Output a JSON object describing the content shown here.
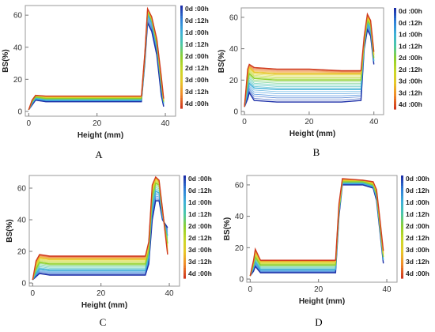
{
  "legend_times": [
    "0d :00h",
    "0d :12h",
    "1d :00h",
    "1d :12h",
    "2d :00h",
    "2d :12h",
    "3d :00h",
    "3d :12h",
    "4d :00h"
  ],
  "legend_colors": [
    "#1c2fa8",
    "#2f7fd8",
    "#3fb0d8",
    "#4cc8a8",
    "#8fd02c",
    "#c8d82a",
    "#e8c82a",
    "#f08a2a",
    "#d03a1e"
  ],
  "chart_data": [
    {
      "panel": "A",
      "type": "line",
      "xlabel": "Height (mm)",
      "ylabel": "BS(%)",
      "xlim": [
        -1,
        43
      ],
      "ylim": [
        -3,
        66
      ],
      "xticks": [
        0,
        20,
        40
      ],
      "yticks": [
        0,
        20,
        40,
        60
      ],
      "series": [
        {
          "name": "0d :00h",
          "points": [
            [
              0,
              1
            ],
            [
              1,
              4
            ],
            [
              2,
              7
            ],
            [
              5,
              6
            ],
            [
              20,
              6
            ],
            [
              33,
              6
            ],
            [
              34,
              30
            ],
            [
              34.8,
              55
            ],
            [
              36,
              50
            ],
            [
              37.5,
              35
            ],
            [
              38.8,
              10
            ],
            [
              39.5,
              3
            ]
          ]
        },
        {
          "name": "1d :00h",
          "points": [
            [
              0,
              1
            ],
            [
              1,
              5
            ],
            [
              2,
              8
            ],
            [
              5,
              7
            ],
            [
              20,
              7
            ],
            [
              33,
              7
            ],
            [
              34,
              32
            ],
            [
              34.8,
              60
            ],
            [
              36,
              55
            ],
            [
              37.5,
              40
            ],
            [
              38.8,
              15
            ],
            [
              39.5,
              5
            ]
          ]
        },
        {
          "name": "2d :00h",
          "points": [
            [
              0,
              1
            ],
            [
              1,
              6
            ],
            [
              2,
              9
            ],
            [
              5,
              8
            ],
            [
              20,
              8
            ],
            [
              33,
              8
            ],
            [
              34,
              34
            ],
            [
              34.8,
              62
            ],
            [
              36,
              57
            ],
            [
              37.5,
              42
            ],
            [
              38.8,
              18
            ],
            [
              39.5,
              6
            ]
          ]
        },
        {
          "name": "3d :00h",
          "points": [
            [
              0,
              1
            ],
            [
              1,
              7
            ],
            [
              2,
              10
            ],
            [
              5,
              9
            ],
            [
              20,
              9
            ],
            [
              33,
              9
            ],
            [
              34,
              35
            ],
            [
              34.8,
              63
            ],
            [
              36,
              58
            ],
            [
              37.5,
              44
            ],
            [
              38.8,
              20
            ],
            [
              39.5,
              7
            ]
          ]
        },
        {
          "name": "4d :00h",
          "points": [
            [
              0,
              1
            ],
            [
              1,
              7
            ],
            [
              2,
              10
            ],
            [
              5,
              9.5
            ],
            [
              20,
              9.5
            ],
            [
              33,
              9.5
            ],
            [
              34,
              36
            ],
            [
              34.8,
              64
            ],
            [
              36,
              59
            ],
            [
              37.5,
              45
            ],
            [
              38.8,
              22
            ],
            [
              39.5,
              8
            ]
          ]
        }
      ]
    },
    {
      "panel": "B",
      "type": "line",
      "xlabel": "Height (mm)",
      "ylabel": "BS(%)",
      "xlim": [
        -1,
        43
      ],
      "ylim": [
        -2,
        66
      ],
      "xticks": [
        0,
        20,
        40
      ],
      "yticks": [
        0,
        20,
        40,
        60
      ],
      "series": [
        {
          "name": "0d :00h",
          "points": [
            [
              0,
              3
            ],
            [
              1,
              8
            ],
            [
              1.5,
              12
            ],
            [
              3,
              7
            ],
            [
              10,
              6
            ],
            [
              20,
              6
            ],
            [
              30,
              6
            ],
            [
              36,
              7
            ],
            [
              37,
              40
            ],
            [
              38,
              52
            ],
            [
              39,
              48
            ],
            [
              40,
              30
            ]
          ]
        },
        {
          "name": "1d :00h",
          "points": [
            [
              0,
              3
            ],
            [
              1,
              14
            ],
            [
              1.5,
              18
            ],
            [
              3,
              15
            ],
            [
              10,
              14
            ],
            [
              20,
              14
            ],
            [
              30,
              14
            ],
            [
              36,
              14
            ],
            [
              37,
              42
            ],
            [
              38,
              56
            ],
            [
              39,
              52
            ],
            [
              40,
              32
            ]
          ]
        },
        {
          "name": "2d :00h",
          "points": [
            [
              0,
              3
            ],
            [
              1,
              20
            ],
            [
              1.5,
              24
            ],
            [
              3,
              21
            ],
            [
              10,
              20
            ],
            [
              20,
              20
            ],
            [
              30,
              20
            ],
            [
              36,
              20
            ],
            [
              37,
              44
            ],
            [
              38,
              58
            ],
            [
              39,
              55
            ],
            [
              40,
              34
            ]
          ]
        },
        {
          "name": "3d :00h",
          "points": [
            [
              0,
              3
            ],
            [
              1,
              24
            ],
            [
              1.5,
              28
            ],
            [
              3,
              25
            ],
            [
              10,
              24
            ],
            [
              20,
              24
            ],
            [
              30,
              24
            ],
            [
              36,
              24
            ],
            [
              37,
              46
            ],
            [
              38,
              60
            ],
            [
              39,
              57
            ],
            [
              40,
              36
            ]
          ]
        },
        {
          "name": "4d :00h",
          "points": [
            [
              0,
              3
            ],
            [
              1,
              27
            ],
            [
              1.5,
              30
            ],
            [
              3,
              28
            ],
            [
              10,
              27
            ],
            [
              20,
              27
            ],
            [
              30,
              26
            ],
            [
              36,
              26
            ],
            [
              37,
              48
            ],
            [
              38,
              62
            ],
            [
              39,
              58
            ],
            [
              40,
              38
            ]
          ]
        }
      ]
    },
    {
      "panel": "C",
      "type": "line",
      "xlabel": "Height (mm)",
      "ylabel": "BS(%)",
      "xlim": [
        -1,
        43
      ],
      "ylim": [
        -2,
        68
      ],
      "xticks": [
        0,
        20,
        40
      ],
      "yticks": [
        0,
        20,
        40,
        60
      ],
      "series": [
        {
          "name": "0d :00h",
          "points": [
            [
              0,
              2
            ],
            [
              1,
              4
            ],
            [
              2,
              6
            ],
            [
              5,
              5
            ],
            [
              20,
              5
            ],
            [
              33,
              5
            ],
            [
              34,
              12
            ],
            [
              35,
              40
            ],
            [
              36,
              52
            ],
            [
              37,
              52
            ],
            [
              38,
              40
            ],
            [
              39.5,
              35
            ]
          ]
        },
        {
          "name": "1d :00h",
          "points": [
            [
              0,
              2
            ],
            [
              1,
              6
            ],
            [
              2,
              9
            ],
            [
              5,
              8
            ],
            [
              20,
              8
            ],
            [
              33,
              8
            ],
            [
              34,
              16
            ],
            [
              35,
              48
            ],
            [
              36,
              58
            ],
            [
              37,
              57
            ],
            [
              38,
              42
            ],
            [
              39.5,
              30
            ]
          ]
        },
        {
          "name": "2d :00h",
          "points": [
            [
              0,
              2
            ],
            [
              1,
              9
            ],
            [
              2,
              13
            ],
            [
              5,
              12
            ],
            [
              20,
              12
            ],
            [
              33,
              12
            ],
            [
              34,
              20
            ],
            [
              35,
              55
            ],
            [
              36,
              63
            ],
            [
              37,
              62
            ],
            [
              38,
              45
            ],
            [
              39.5,
              25
            ]
          ]
        },
        {
          "name": "3d :00h",
          "points": [
            [
              0,
              2
            ],
            [
              1,
              12
            ],
            [
              2,
              16
            ],
            [
              5,
              15
            ],
            [
              20,
              15
            ],
            [
              33,
              15
            ],
            [
              34,
              24
            ],
            [
              35,
              60
            ],
            [
              36,
              66
            ],
            [
              37,
              64
            ],
            [
              38,
              46
            ],
            [
              39.5,
              20
            ]
          ]
        },
        {
          "name": "4d :00h",
          "points": [
            [
              0,
              2
            ],
            [
              1,
              14
            ],
            [
              2,
              18
            ],
            [
              5,
              17
            ],
            [
              20,
              17
            ],
            [
              33,
              17
            ],
            [
              34,
              26
            ],
            [
              35,
              62
            ],
            [
              36,
              67
            ],
            [
              37,
              65
            ],
            [
              38,
              47
            ],
            [
              39.5,
              18
            ]
          ]
        }
      ]
    },
    {
      "panel": "D",
      "type": "line",
      "xlabel": "Height (mm)",
      "ylabel": "BS(%)",
      "xlim": [
        -1,
        43
      ],
      "ylim": [
        -2,
        66
      ],
      "xticks": [
        0,
        20,
        40
      ],
      "yticks": [
        0,
        20,
        40,
        60
      ],
      "series": [
        {
          "name": "0d :00h",
          "points": [
            [
              0,
              2
            ],
            [
              1,
              5
            ],
            [
              1.5,
              8
            ],
            [
              3,
              4
            ],
            [
              10,
              4
            ],
            [
              20,
              4
            ],
            [
              25,
              4
            ],
            [
              26,
              40
            ],
            [
              27,
              60
            ],
            [
              33,
              60
            ],
            [
              36,
              58
            ],
            [
              37,
              50
            ],
            [
              38,
              30
            ],
            [
              39,
              10
            ]
          ]
        },
        {
          "name": "1d :00h",
          "points": [
            [
              0,
              2
            ],
            [
              1,
              7
            ],
            [
              1.5,
              11
            ],
            [
              3,
              6
            ],
            [
              10,
              6
            ],
            [
              20,
              6
            ],
            [
              25,
              6
            ],
            [
              26,
              42
            ],
            [
              27,
              61
            ],
            [
              33,
              61
            ],
            [
              36,
              59
            ],
            [
              37,
              52
            ],
            [
              38,
              32
            ],
            [
              39,
              12
            ]
          ]
        },
        {
          "name": "2d :00h",
          "points": [
            [
              0,
              2
            ],
            [
              1,
              9
            ],
            [
              1.5,
              14
            ],
            [
              3,
              9
            ],
            [
              10,
              9
            ],
            [
              20,
              9
            ],
            [
              25,
              9
            ],
            [
              26,
              44
            ],
            [
              27,
              62
            ],
            [
              33,
              62
            ],
            [
              36,
              60
            ],
            [
              37,
              54
            ],
            [
              38,
              34
            ],
            [
              39,
              14
            ]
          ]
        },
        {
          "name": "3d :00h",
          "points": [
            [
              0,
              2
            ],
            [
              1,
              11
            ],
            [
              1.5,
              17
            ],
            [
              3,
              11
            ],
            [
              10,
              11
            ],
            [
              20,
              11
            ],
            [
              25,
              11
            ],
            [
              26,
              46
            ],
            [
              27,
              63
            ],
            [
              33,
              63
            ],
            [
              36,
              61
            ],
            [
              37,
              56
            ],
            [
              38,
              36
            ],
            [
              39,
              16
            ]
          ]
        },
        {
          "name": "4d :00h",
          "points": [
            [
              0,
              2
            ],
            [
              1,
              12
            ],
            [
              1.5,
              19
            ],
            [
              3,
              12
            ],
            [
              10,
              12
            ],
            [
              20,
              12
            ],
            [
              25,
              12
            ],
            [
              26,
              48
            ],
            [
              27,
              64
            ],
            [
              33,
              63
            ],
            [
              36,
              62
            ],
            [
              37,
              57
            ],
            [
              38,
              38
            ],
            [
              39,
              18
            ]
          ]
        }
      ]
    }
  ]
}
